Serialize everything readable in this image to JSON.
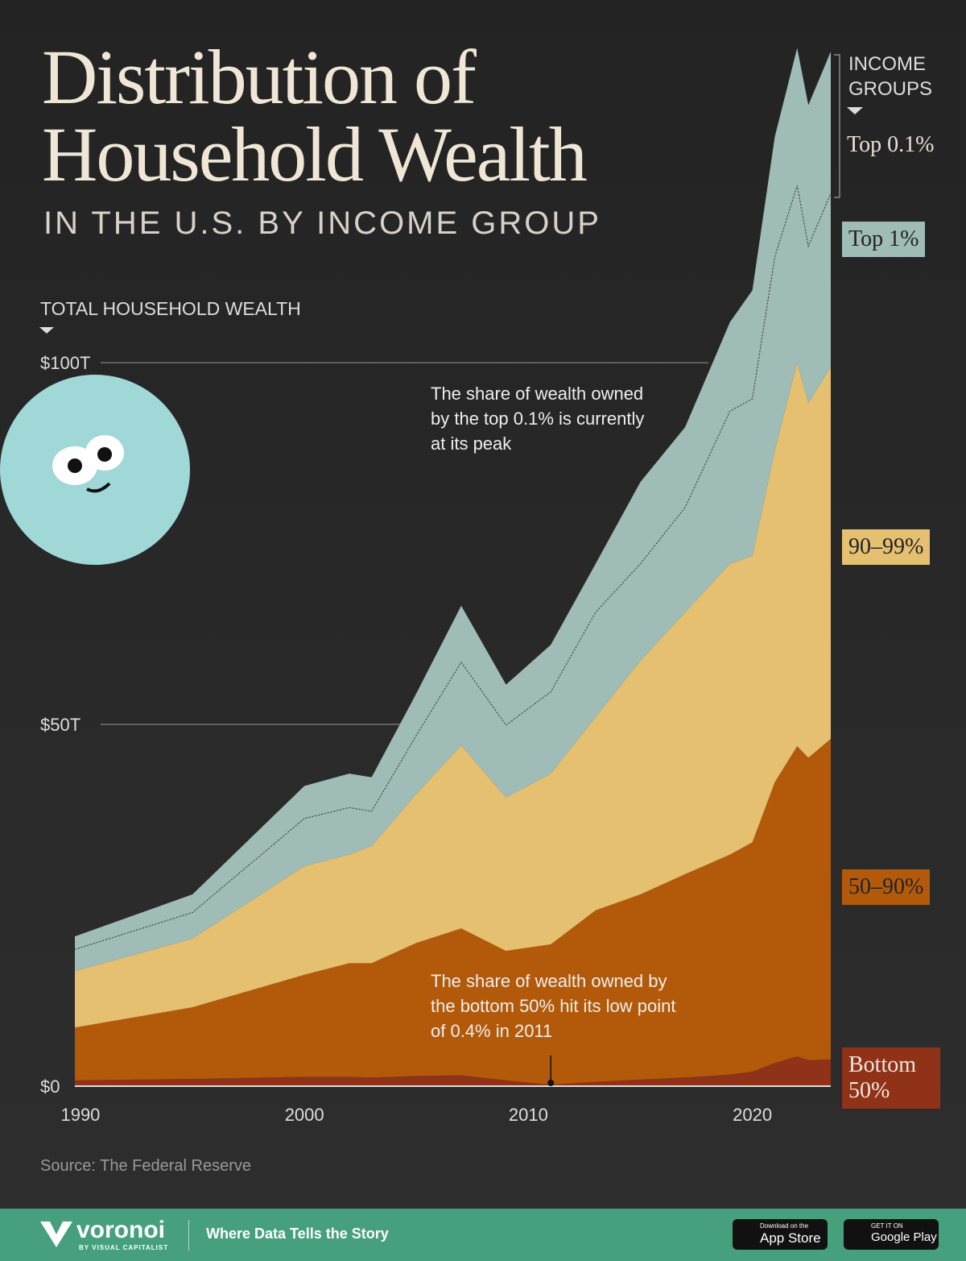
{
  "header": {
    "title": "Distribution of Household Wealth",
    "subtitle": "IN THE U.S. BY INCOME GROUP"
  },
  "chart_data": {
    "type": "area",
    "stacked": true,
    "y_label": "TOTAL HOUSEHOLD WEALTH",
    "legend_title": "INCOME GROUPS",
    "x": [
      1989.75,
      1995,
      2000,
      2002,
      2003,
      2005,
      2007,
      2009,
      2011,
      2013,
      2015,
      2017,
      2019,
      2020,
      2021,
      2022,
      2022.5,
      2023.5
    ],
    "series": [
      {
        "name": "Bottom 50%",
        "color": "#8f3218",
        "values": [
          0.8,
          1.0,
          1.3,
          1.3,
          1.2,
          1.4,
          1.5,
          0.8,
          0.2,
          0.6,
          0.9,
          1.2,
          1.6,
          2.0,
          3.2,
          4.1,
          3.6,
          3.7
        ]
      },
      {
        "name": "50–90%",
        "color": "#b35a0a",
        "values": [
          7.3,
          9.9,
          14.1,
          15.7,
          15.8,
          18.4,
          20.3,
          17.9,
          19.4,
          23.7,
          25.6,
          28.1,
          30.4,
          31.7,
          38.8,
          42.9,
          41.8,
          44.3
        ]
      },
      {
        "name": "90–99%",
        "color": "#e5c071",
        "values": [
          7.8,
          9.5,
          15.0,
          15.0,
          16.2,
          20.6,
          25.3,
          21.2,
          23.6,
          26.7,
          32.3,
          36.2,
          40.2,
          39.6,
          45.8,
          53.0,
          49.0,
          51.4
        ]
      },
      {
        "name": "Top 1%",
        "color": "#9fbcb7",
        "values": [
          3.0,
          3.6,
          6.6,
          6.5,
          4.8,
          8.1,
          11.5,
          10.0,
          11.3,
          14.5,
          13.4,
          14.5,
          21.1,
          21.7,
          26.8,
          24.5,
          21.7,
          24.0
        ]
      },
      {
        "name": "Top 0.1%",
        "color": "#9fbcb7",
        "values": [
          1.8,
          2.5,
          4.5,
          4.7,
          4.7,
          5.8,
          7.8,
          5.6,
          6.5,
          6.7,
          11.3,
          11.1,
          12.3,
          15.0,
          16.6,
          19.0,
          19.5,
          19.6
        ]
      }
    ],
    "xlim": [
      1989.75,
      2023.5
    ],
    "xticks": [
      1990,
      2000,
      2010,
      2020
    ],
    "ylim": [
      0,
      144
    ],
    "yticks": [
      {
        "value": 0,
        "label": "$0"
      },
      {
        "value": 50,
        "label": "$50T"
      },
      {
        "value": 100,
        "label": "$100T"
      }
    ],
    "annotations": [
      {
        "text": "The share of wealth owned by the top 0.1% is currently at its peak"
      },
      {
        "text": "The share of wealth owned by the bottom 50% hit its low point of 0.4% in 2011",
        "x": 2011
      }
    ]
  },
  "footer": {
    "source": "Source: The Federal Reserve",
    "brand": "voronoi",
    "brand_sub": "BY VISUAL CAPITALIST",
    "tagline": "Where Data Tells the Story",
    "app_store_small": "Download on the",
    "app_store": "App Store",
    "google_small": "GET IT ON",
    "google": "Google Play"
  }
}
